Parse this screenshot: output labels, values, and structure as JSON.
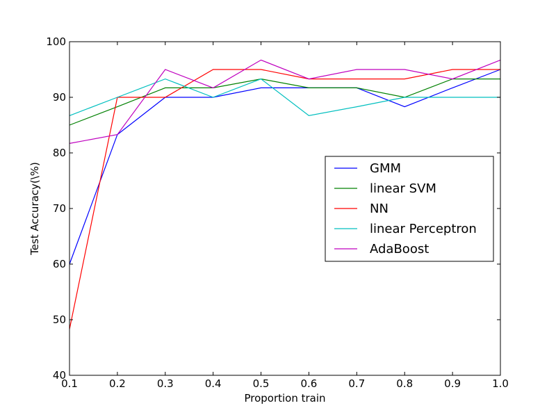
{
  "chart_data": {
    "type": "line",
    "title": "",
    "xlabel": "Proportion train",
    "ylabel": "Test Accuracy(\\%)",
    "xlim": [
      0.1,
      1.0
    ],
    "ylim": [
      40,
      100
    ],
    "x_ticks": [
      "0.1",
      "0.2",
      "0.3",
      "0.4",
      "0.5",
      "0.6",
      "0.7",
      "0.8",
      "0.9",
      "1.0"
    ],
    "y_ticks": [
      "40",
      "50",
      "60",
      "70",
      "80",
      "90",
      "100"
    ],
    "grid": false,
    "legend": "center-right",
    "x": [
      0.1,
      0.2,
      0.3,
      0.4,
      0.5,
      0.6,
      0.7,
      0.8,
      0.9,
      1.0
    ],
    "series": [
      {
        "name": "GMM",
        "color": "#0000ff",
        "values": [
          60.0,
          83.3,
          90.0,
          90.0,
          91.7,
          91.7,
          91.7,
          88.3,
          91.7,
          95.0
        ]
      },
      {
        "name": "linear SVM",
        "color": "#008000",
        "values": [
          85.0,
          88.3,
          91.7,
          91.7,
          93.3,
          91.7,
          91.7,
          90.0,
          93.3,
          93.3
        ]
      },
      {
        "name": "NN",
        "color": "#ff0000",
        "values": [
          48.3,
          90.0,
          90.0,
          95.0,
          95.0,
          93.3,
          93.3,
          93.3,
          95.0,
          95.0
        ]
      },
      {
        "name": "linear Perceptron",
        "color": "#00bfbf",
        "values": [
          86.7,
          90.0,
          93.3,
          90.0,
          93.3,
          86.7,
          88.3,
          90.0,
          90.0,
          90.0
        ]
      },
      {
        "name": "AdaBoost",
        "color": "#bf00bf",
        "values": [
          81.7,
          83.3,
          95.0,
          91.7,
          96.7,
          93.3,
          95.0,
          95.0,
          93.3,
          96.7
        ]
      }
    ]
  }
}
